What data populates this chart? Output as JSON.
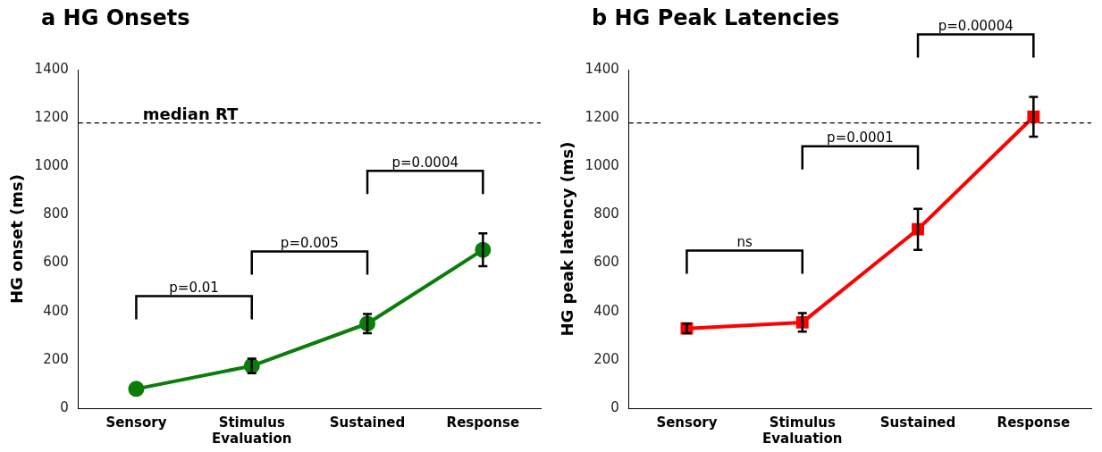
{
  "chart_data": [
    {
      "type": "line",
      "title": "a HG Onsets",
      "ylabel": "HG onset (ms)",
      "categories": [
        "Sensory",
        "Stimulus Evaluation",
        "Sustained",
        "Response"
      ],
      "series": [
        {
          "color": "#0a7d0a",
          "values": [
            80,
            175,
            350,
            655
          ],
          "errors": [
            null,
            30,
            40,
            68
          ]
        }
      ],
      "ylim": [
        0,
        1400
      ],
      "yticks": [
        0,
        200,
        400,
        600,
        800,
        1000,
        1200,
        1400
      ],
      "grid": false,
      "legend": false,
      "marker": "circle",
      "line_style": "solid",
      "ref_lines": [
        {
          "axis": "y",
          "value": 1180,
          "label": "median RT",
          "line_style": "dashed",
          "color": "#000000"
        }
      ],
      "annotations": [
        "p=0.01",
        "p=0.005",
        "p=0.0004"
      ]
    },
    {
      "type": "line",
      "title": "b HG Peak Latencies",
      "ylabel": "HG peak latency (ms)",
      "categories": [
        "Sensory",
        "Stimulus Evaluation",
        "Sustained",
        "Response"
      ],
      "series": [
        {
          "color": "#ff0000",
          "values": [
            330,
            355,
            740,
            1205
          ],
          "errors": [
            20,
            38,
            85,
            82
          ]
        }
      ],
      "ylim": [
        0,
        1400
      ],
      "yticks": [
        0,
        200,
        400,
        600,
        800,
        1000,
        1200,
        1400
      ],
      "grid": false,
      "legend": false,
      "marker": "square",
      "line_style": "solid",
      "ref_lines": [
        {
          "axis": "y",
          "value": 1180,
          "line_style": "dashed",
          "color": "#000000"
        }
      ],
      "annotations": [
        "ns",
        "p=0.0001",
        "p=0.00004"
      ]
    }
  ]
}
